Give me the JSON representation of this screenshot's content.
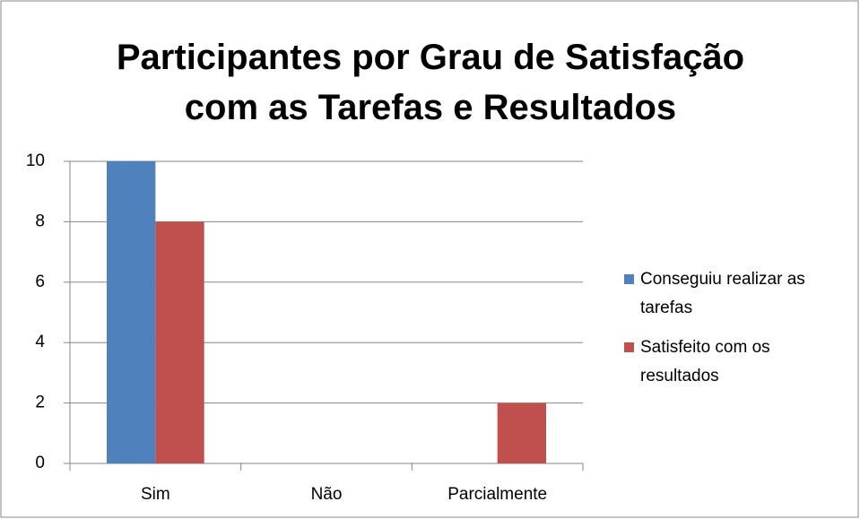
{
  "chart_data": {
    "type": "bar",
    "title": "Participantes por Grau de Satisfação com as Tarefas e Resultados",
    "categories": [
      "Sim",
      "Não",
      "Parcialmente"
    ],
    "series": [
      {
        "name": "Conseguiu realizar as tarefas",
        "color": "#4f81bd",
        "values": [
          10,
          0,
          0
        ]
      },
      {
        "name": "Satisfeito com os resultados",
        "color": "#c0504d",
        "values": [
          8,
          0,
          2
        ]
      }
    ],
    "ylim": [
      0,
      10
    ],
    "yticks": [
      0,
      2,
      4,
      6,
      8,
      10
    ],
    "grid": true,
    "legend": "right"
  }
}
